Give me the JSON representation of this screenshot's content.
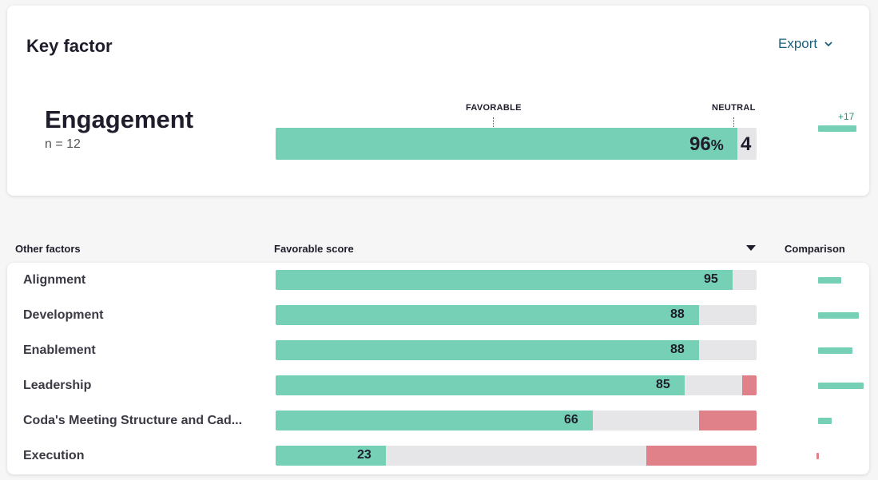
{
  "key_factor": {
    "title": "Key factor",
    "export_label": "Export",
    "name": "Engagement",
    "n_label": "n = 12",
    "favorable_marker_label": "FAVORABLE",
    "neutral_marker_label": "NEUTRAL",
    "favorable_value": 96,
    "favorable_display": "96",
    "pct_symbol": "%",
    "neutral_value": 4,
    "neutral_display": "4",
    "comparison_label": "+17",
    "comparison_value": 17
  },
  "other_factors": {
    "header_factor": "Other factors",
    "header_score": "Favorable score",
    "header_comparison": "Comparison",
    "rows": [
      {
        "label": "Alignment",
        "favorable": 95,
        "favorable_display": "95",
        "unfavorable": 0,
        "comparison": 10
      },
      {
        "label": "Development",
        "favorable": 88,
        "favorable_display": "88",
        "unfavorable": 0,
        "comparison": 18
      },
      {
        "label": "Enablement",
        "favorable": 88,
        "favorable_display": "88",
        "unfavorable": 0,
        "comparison": 15
      },
      {
        "label": "Leadership",
        "favorable": 85,
        "favorable_display": "85",
        "unfavorable": 3,
        "comparison": 20
      },
      {
        "label": "Coda's Meeting Structure and Cad...",
        "favorable": 66,
        "favorable_display": "66",
        "unfavorable": 12,
        "comparison": 6
      },
      {
        "label": "Execution",
        "favorable": 23,
        "favorable_display": "23",
        "unfavorable": 23,
        "comparison": -1
      }
    ]
  },
  "colors": {
    "favorable": "#76d0b6",
    "neutral": "#e6e6e9",
    "unfavorable": "#e0818a",
    "accent_link": "#1d5f7a"
  },
  "icons": {
    "export_dropdown": "chevron-down-icon",
    "sort": "sort-desc-icon"
  }
}
